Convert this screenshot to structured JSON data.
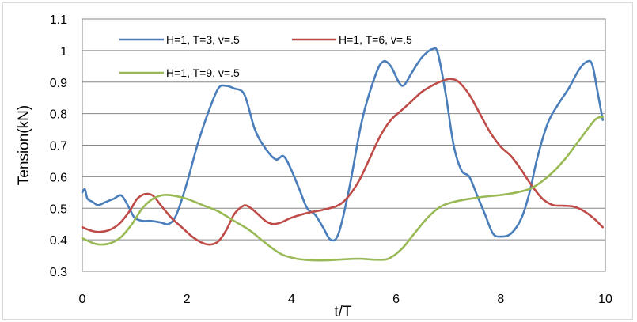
{
  "chart_data": {
    "type": "line",
    "title": "",
    "xlabel": "t/T",
    "ylabel": "Tension(kN)",
    "xlim": [
      0,
      10
    ],
    "ylim": [
      0.3,
      1.1
    ],
    "x_ticks": [
      0,
      2,
      4,
      6,
      8,
      10
    ],
    "y_ticks": [
      0.3,
      0.4,
      0.5,
      0.6,
      0.7,
      0.8,
      0.9,
      1.0,
      1.1
    ],
    "y_tick_labels": [
      "0.3",
      "0.4",
      "0.5",
      "0.6",
      "0.7",
      "0.8",
      "0.9",
      "1",
      "1.1"
    ],
    "grid": {
      "horizontal": true,
      "vertical": false
    },
    "legend_position": "top",
    "series": [
      {
        "name": "H=1, T=3, v=.5",
        "color": "#4a7ebb",
        "points": [
          [
            0,
            0.55
          ],
          [
            0.05,
            0.56
          ],
          [
            0.1,
            0.53
          ],
          [
            0.2,
            0.52
          ],
          [
            0.3,
            0.51
          ],
          [
            0.45,
            0.52
          ],
          [
            0.6,
            0.53
          ],
          [
            0.75,
            0.54
          ],
          [
            0.9,
            0.5
          ],
          [
            1.0,
            0.47
          ],
          [
            1.15,
            0.46
          ],
          [
            1.3,
            0.46
          ],
          [
            1.5,
            0.455
          ],
          [
            1.65,
            0.45
          ],
          [
            1.8,
            0.48
          ],
          [
            2.0,
            0.58
          ],
          [
            2.2,
            0.7
          ],
          [
            2.4,
            0.8
          ],
          [
            2.6,
            0.88
          ],
          [
            2.75,
            0.888
          ],
          [
            2.9,
            0.88
          ],
          [
            3.1,
            0.86
          ],
          [
            3.3,
            0.75
          ],
          [
            3.5,
            0.69
          ],
          [
            3.7,
            0.655
          ],
          [
            3.85,
            0.665
          ],
          [
            4.0,
            0.62
          ],
          [
            4.15,
            0.56
          ],
          [
            4.3,
            0.5
          ],
          [
            4.45,
            0.48
          ],
          [
            4.6,
            0.44
          ],
          [
            4.75,
            0.4
          ],
          [
            4.9,
            0.42
          ],
          [
            5.1,
            0.56
          ],
          [
            5.35,
            0.78
          ],
          [
            5.6,
            0.92
          ],
          [
            5.75,
            0.965
          ],
          [
            5.9,
            0.95
          ],
          [
            6.05,
            0.9
          ],
          [
            6.15,
            0.89
          ],
          [
            6.3,
            0.93
          ],
          [
            6.5,
            0.98
          ],
          [
            6.7,
            1.005
          ],
          [
            6.8,
            0.99
          ],
          [
            6.95,
            0.86
          ],
          [
            7.1,
            0.7
          ],
          [
            7.25,
            0.62
          ],
          [
            7.4,
            0.6
          ],
          [
            7.55,
            0.54
          ],
          [
            7.7,
            0.48
          ],
          [
            7.85,
            0.42
          ],
          [
            8.0,
            0.41
          ],
          [
            8.2,
            0.42
          ],
          [
            8.4,
            0.47
          ],
          [
            8.55,
            0.55
          ],
          [
            8.7,
            0.66
          ],
          [
            8.9,
            0.77
          ],
          [
            9.1,
            0.83
          ],
          [
            9.3,
            0.88
          ],
          [
            9.5,
            0.94
          ],
          [
            9.65,
            0.965
          ],
          [
            9.75,
            0.955
          ],
          [
            9.85,
            0.87
          ],
          [
            9.95,
            0.78
          ]
        ]
      },
      {
        "name": "H=1, T=6, v=.5",
        "color": "#be4b48",
        "points": [
          [
            0,
            0.44
          ],
          [
            0.15,
            0.43
          ],
          [
            0.3,
            0.425
          ],
          [
            0.5,
            0.43
          ],
          [
            0.7,
            0.45
          ],
          [
            0.9,
            0.49
          ],
          [
            1.05,
            0.53
          ],
          [
            1.2,
            0.545
          ],
          [
            1.35,
            0.54
          ],
          [
            1.5,
            0.51
          ],
          [
            1.7,
            0.47
          ],
          [
            1.9,
            0.44
          ],
          [
            2.1,
            0.41
          ],
          [
            2.3,
            0.39
          ],
          [
            2.45,
            0.385
          ],
          [
            2.6,
            0.395
          ],
          [
            2.75,
            0.43
          ],
          [
            2.9,
            0.48
          ],
          [
            3.05,
            0.505
          ],
          [
            3.15,
            0.508
          ],
          [
            3.3,
            0.49
          ],
          [
            3.5,
            0.46
          ],
          [
            3.65,
            0.45
          ],
          [
            3.8,
            0.455
          ],
          [
            4.0,
            0.47
          ],
          [
            4.3,
            0.485
          ],
          [
            4.6,
            0.495
          ],
          [
            4.9,
            0.51
          ],
          [
            5.1,
            0.54
          ],
          [
            5.3,
            0.59
          ],
          [
            5.5,
            0.66
          ],
          [
            5.7,
            0.73
          ],
          [
            5.9,
            0.78
          ],
          [
            6.1,
            0.81
          ],
          [
            6.3,
            0.84
          ],
          [
            6.5,
            0.87
          ],
          [
            6.7,
            0.89
          ],
          [
            6.9,
            0.905
          ],
          [
            7.05,
            0.91
          ],
          [
            7.2,
            0.9
          ],
          [
            7.4,
            0.86
          ],
          [
            7.6,
            0.8
          ],
          [
            7.8,
            0.74
          ],
          [
            8.0,
            0.695
          ],
          [
            8.2,
            0.665
          ],
          [
            8.4,
            0.62
          ],
          [
            8.6,
            0.57
          ],
          [
            8.8,
            0.53
          ],
          [
            9.0,
            0.51
          ],
          [
            9.2,
            0.508
          ],
          [
            9.4,
            0.505
          ],
          [
            9.6,
            0.49
          ],
          [
            9.8,
            0.465
          ],
          [
            9.95,
            0.44
          ]
        ]
      },
      {
        "name": "H=1, T=9, v=.5",
        "color": "#98b954",
        "points": [
          [
            0,
            0.405
          ],
          [
            0.2,
            0.39
          ],
          [
            0.35,
            0.385
          ],
          [
            0.55,
            0.39
          ],
          [
            0.75,
            0.41
          ],
          [
            0.95,
            0.45
          ],
          [
            1.15,
            0.5
          ],
          [
            1.35,
            0.53
          ],
          [
            1.55,
            0.542
          ],
          [
            1.75,
            0.54
          ],
          [
            2.0,
            0.53
          ],
          [
            2.3,
            0.51
          ],
          [
            2.6,
            0.49
          ],
          [
            2.9,
            0.46
          ],
          [
            3.2,
            0.43
          ],
          [
            3.5,
            0.39
          ],
          [
            3.8,
            0.355
          ],
          [
            4.1,
            0.34
          ],
          [
            4.4,
            0.335
          ],
          [
            4.7,
            0.335
          ],
          [
            5.0,
            0.338
          ],
          [
            5.3,
            0.34
          ],
          [
            5.6,
            0.337
          ],
          [
            5.85,
            0.34
          ],
          [
            6.1,
            0.37
          ],
          [
            6.35,
            0.42
          ],
          [
            6.6,
            0.47
          ],
          [
            6.85,
            0.505
          ],
          [
            7.1,
            0.52
          ],
          [
            7.4,
            0.53
          ],
          [
            7.7,
            0.537
          ],
          [
            8.0,
            0.542
          ],
          [
            8.3,
            0.55
          ],
          [
            8.6,
            0.565
          ],
          [
            8.9,
            0.6
          ],
          [
            9.2,
            0.65
          ],
          [
            9.5,
            0.715
          ],
          [
            9.8,
            0.78
          ],
          [
            9.95,
            0.79
          ]
        ]
      }
    ]
  }
}
